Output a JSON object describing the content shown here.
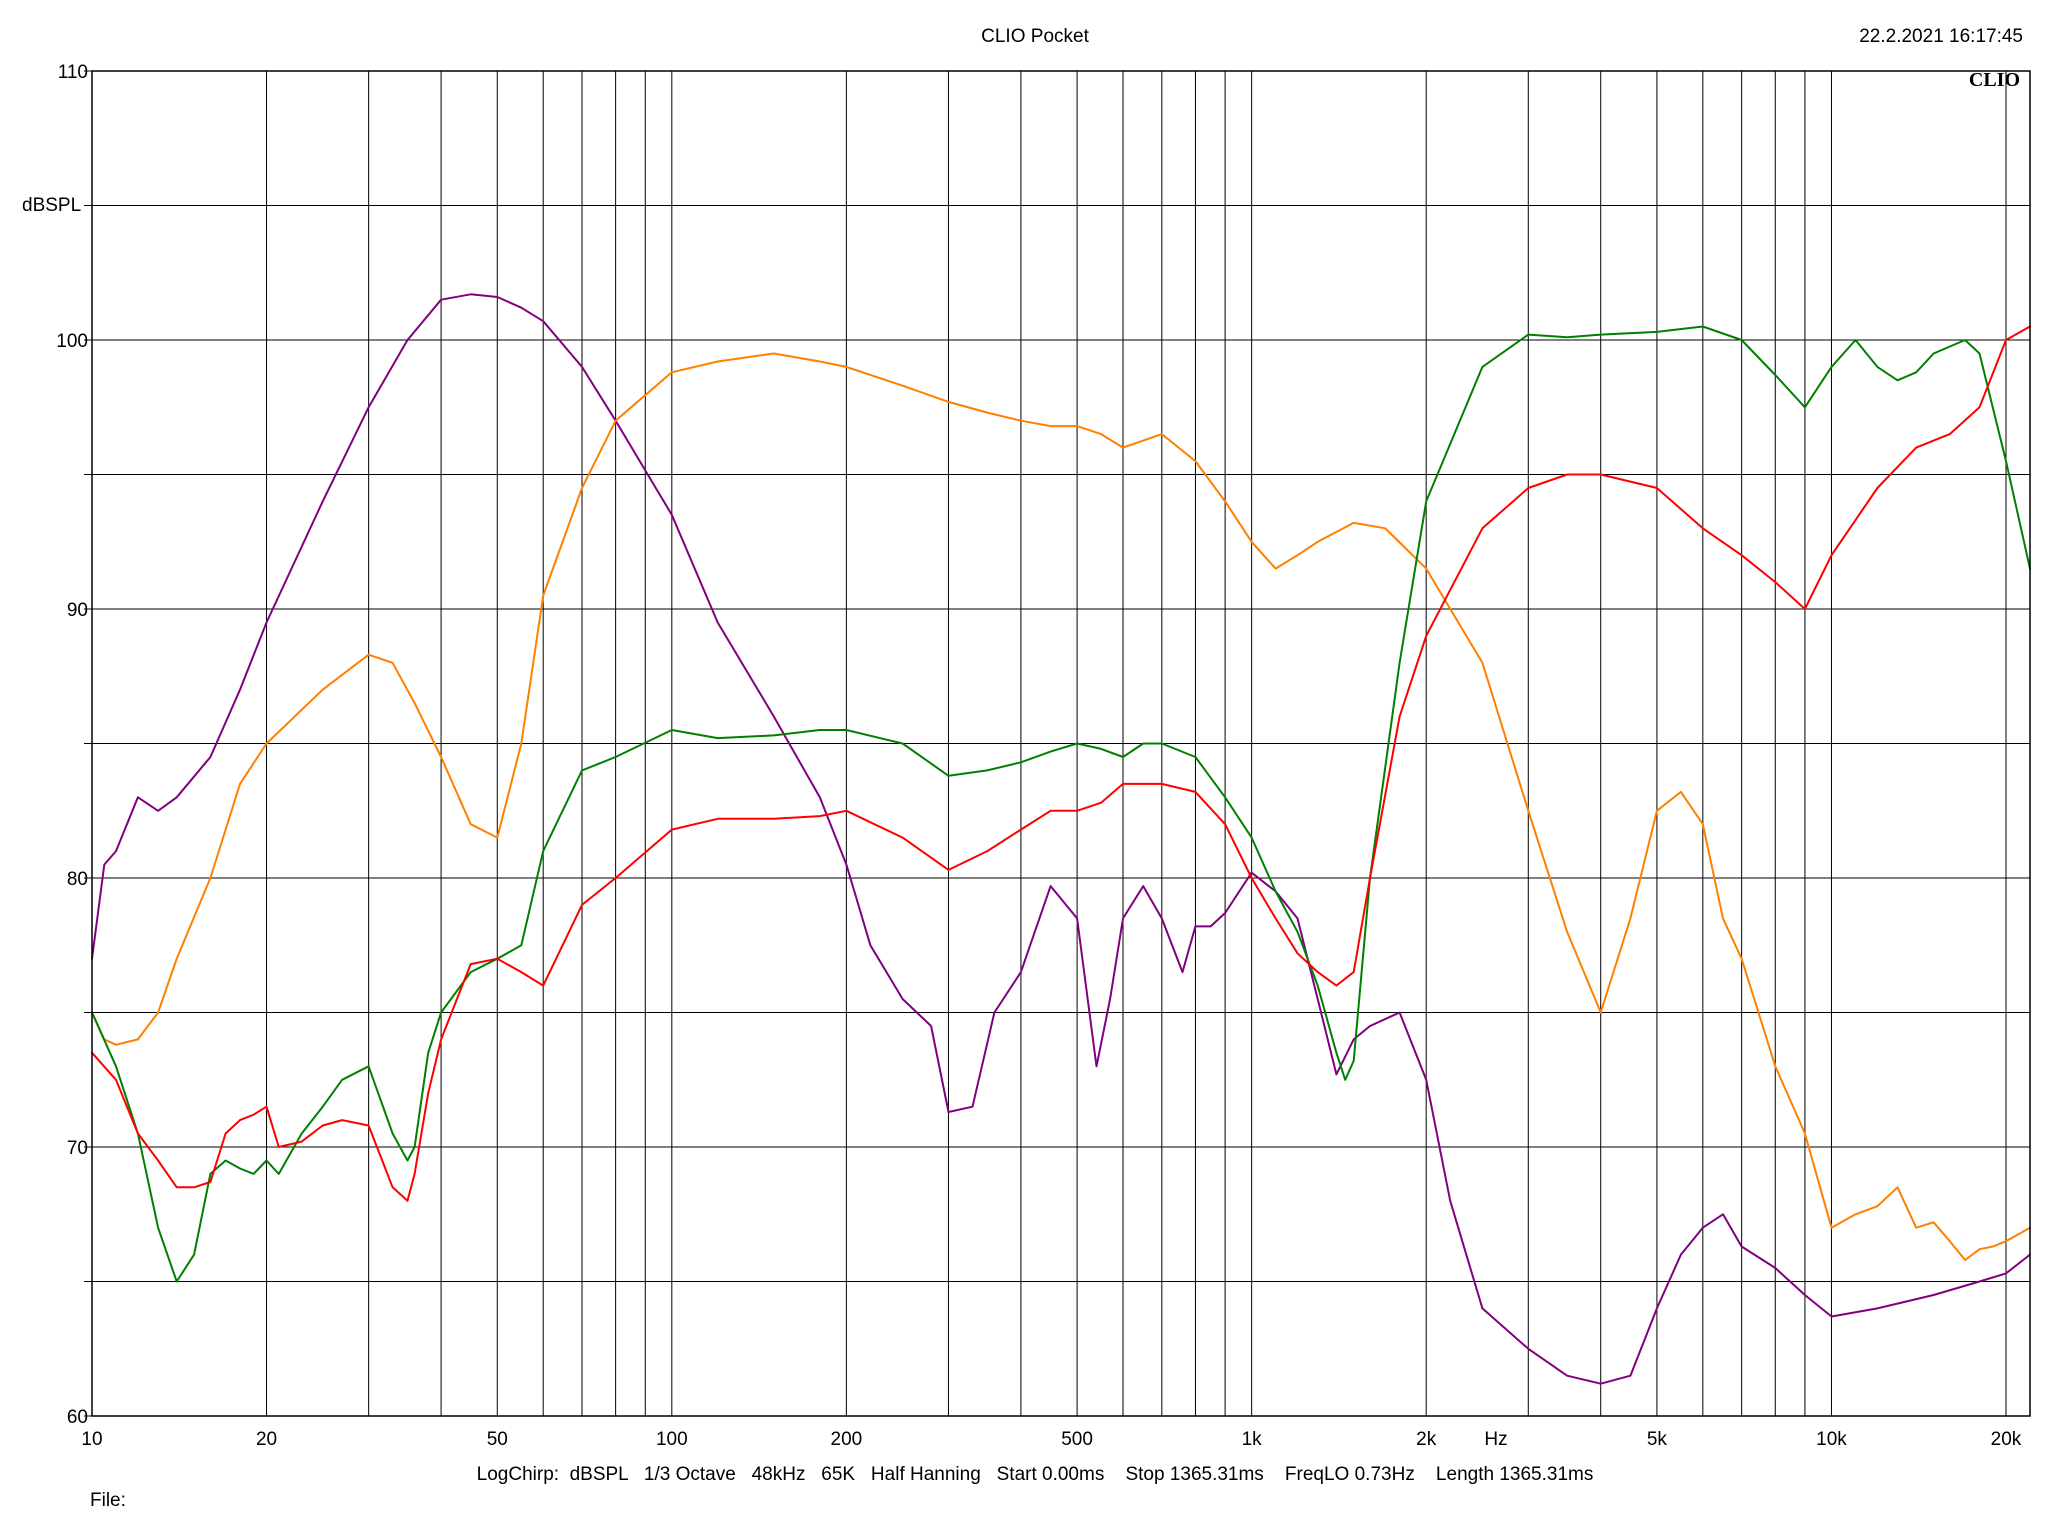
{
  "header": {
    "title": "CLIO Pocket",
    "timestamp": "22.2.2021 16:17:45",
    "brand": "CLIO"
  },
  "footer": {
    "settings_line": "LogChirp:  dBSPL   1/3 Octave   48kHz   65K   Half Hanning   Start 0.00ms    Stop 1365.31ms    FreqLO 0.73Hz    Length 1365.31ms",
    "file_label": "File:"
  },
  "chart_data": {
    "type": "line",
    "title": "CLIO Pocket",
    "xlabel": "Hz",
    "ylabel": "dBSPL",
    "x_scale": "log",
    "xlim": [
      10,
      22000
    ],
    "ylim": [
      60,
      110
    ],
    "y_ticks": [
      60,
      70,
      80,
      90,
      100,
      110
    ],
    "x_tick_labels": [
      {
        "value": 10,
        "label": "10"
      },
      {
        "value": 20,
        "label": "20"
      },
      {
        "value": 50,
        "label": "50"
      },
      {
        "value": 100,
        "label": "100"
      },
      {
        "value": 200,
        "label": "200"
      },
      {
        "value": 500,
        "label": "500"
      },
      {
        "value": 1000,
        "label": "1k"
      },
      {
        "value": 2000,
        "label": "2k"
      },
      {
        "value": 5000,
        "label": "5k"
      },
      {
        "value": 10000,
        "label": "10k"
      },
      {
        "value": 20000,
        "label": "20k"
      }
    ],
    "grid": true,
    "series": [
      {
        "color": "#800080",
        "x": [
          10,
          10.5,
          11,
          12,
          13,
          14,
          16,
          18,
          20,
          25,
          30,
          35,
          40,
          45,
          50,
          55,
          60,
          70,
          80,
          100,
          120,
          150,
          180,
          200,
          220,
          250,
          280,
          300,
          330,
          360,
          400,
          450,
          500,
          540,
          570,
          600,
          650,
          700,
          760,
          800,
          850,
          900,
          1000,
          1100,
          1200,
          1300,
          1400,
          1500,
          1600,
          1800,
          2000,
          2200,
          2500,
          3000,
          3500,
          4000,
          4500,
          5000,
          5500,
          6000,
          6500,
          7000,
          8000,
          9000,
          10000,
          12000,
          15000,
          18000,
          20000,
          22000
        ],
        "values": [
          77,
          80.5,
          81,
          83,
          82.5,
          83,
          84.5,
          87,
          89.5,
          94,
          97.5,
          100,
          101.5,
          101.7,
          101.6,
          101.2,
          100.7,
          99,
          97,
          93.5,
          89.5,
          86,
          83,
          80.5,
          77.5,
          75.5,
          74.5,
          71.3,
          71.5,
          75,
          76.5,
          79.7,
          78.5,
          73,
          75.5,
          78.5,
          79.7,
          78.5,
          76.5,
          78.2,
          78.2,
          78.7,
          80.2,
          79.5,
          78.5,
          75.5,
          72.7,
          74,
          74.5,
          75,
          72.5,
          68,
          64,
          62.5,
          61.5,
          61.2,
          61.5,
          64,
          66,
          67,
          67.5,
          66.3,
          65.5,
          64.5,
          63.7,
          64,
          64.5,
          65,
          65.3,
          66
        ]
      },
      {
        "color": "#ff8000",
        "x": [
          10,
          10.5,
          11,
          12,
          13,
          14,
          16,
          18,
          20,
          25,
          30,
          33,
          36,
          40,
          45,
          50,
          55,
          60,
          70,
          80,
          100,
          120,
          150,
          180,
          200,
          250,
          300,
          350,
          400,
          450,
          500,
          550,
          600,
          700,
          800,
          900,
          1000,
          1100,
          1200,
          1300,
          1500,
          1700,
          2000,
          2500,
          3000,
          3500,
          4000,
          4500,
          5000,
          5500,
          6000,
          6500,
          7000,
          8000,
          9000,
          10000,
          11000,
          12000,
          13000,
          14000,
          15000,
          16000,
          17000,
          18000,
          19000,
          20000,
          22000
        ],
        "values": [
          75,
          74,
          73.8,
          74,
          75,
          77,
          80,
          83.5,
          85,
          87,
          88.3,
          88,
          86.5,
          84.5,
          82,
          81.5,
          85,
          90.5,
          94.5,
          97,
          98.8,
          99.2,
          99.5,
          99.2,
          99,
          98.3,
          97.7,
          97.3,
          97,
          96.8,
          96.8,
          96.5,
          96,
          96.5,
          95.5,
          94,
          92.5,
          91.5,
          92,
          92.5,
          93.2,
          93,
          91.5,
          88,
          82.5,
          78,
          75,
          78.5,
          82.5,
          83.2,
          82,
          78.5,
          77,
          73,
          70.5,
          67,
          67.5,
          67.8,
          68.5,
          67,
          67.2,
          66.5,
          65.8,
          66.2,
          66.3,
          66.5,
          67
        ]
      },
      {
        "color": "#008000",
        "x": [
          10,
          11,
          12,
          13,
          14,
          15,
          16,
          17,
          18,
          19,
          20,
          21,
          23,
          25,
          27,
          30,
          33,
          35,
          36,
          38,
          40,
          45,
          50,
          55,
          60,
          70,
          80,
          100,
          120,
          150,
          180,
          200,
          250,
          300,
          350,
          400,
          450,
          500,
          550,
          600,
          650,
          700,
          800,
          900,
          1000,
          1100,
          1200,
          1300,
          1400,
          1450,
          1500,
          1600,
          1800,
          2000,
          2500,
          3000,
          3500,
          4000,
          5000,
          6000,
          7000,
          8000,
          9000,
          10000,
          11000,
          12000,
          13000,
          14000,
          15000,
          17000,
          18000,
          20000,
          22000
        ],
        "values": [
          75,
          73,
          70.5,
          67,
          65,
          66,
          69,
          69.5,
          69.2,
          69,
          69.5,
          69,
          70.5,
          71.5,
          72.5,
          73,
          70.5,
          69.5,
          70,
          73.5,
          75,
          76.5,
          77,
          77.5,
          81,
          84,
          84.5,
          85.5,
          85.2,
          85.3,
          85.5,
          85.5,
          85,
          83.8,
          84,
          84.3,
          84.7,
          85,
          84.8,
          84.5,
          85,
          85,
          84.5,
          83,
          81.5,
          79.5,
          78,
          76,
          73.5,
          72.5,
          73.2,
          80,
          88,
          94,
          99,
          100.2,
          100.1,
          100.2,
          100.3,
          100.5,
          100,
          98.7,
          97.5,
          99,
          100,
          99,
          98.5,
          98.8,
          99.5,
          100,
          99.5,
          95.5,
          91.5
        ]
      },
      {
        "color": "#ff0000",
        "x": [
          10,
          11,
          12,
          13,
          14,
          15,
          16,
          17,
          18,
          19,
          20,
          21,
          23,
          25,
          27,
          30,
          33,
          35,
          36,
          38,
          40,
          45,
          50,
          55,
          60,
          70,
          80,
          100,
          120,
          150,
          180,
          200,
          250,
          300,
          350,
          400,
          450,
          500,
          550,
          600,
          700,
          800,
          900,
          1000,
          1100,
          1200,
          1300,
          1400,
          1500,
          1600,
          1800,
          2000,
          2500,
          3000,
          3500,
          4000,
          5000,
          6000,
          7000,
          8000,
          9000,
          10000,
          12000,
          14000,
          16000,
          18000,
          20000,
          22000
        ],
        "values": [
          73.5,
          72.5,
          70.5,
          69.5,
          68.5,
          68.5,
          68.7,
          70.5,
          71,
          71.2,
          71.5,
          70,
          70.2,
          70.8,
          71,
          70.8,
          68.5,
          68,
          69,
          72,
          74,
          76.8,
          77,
          76.5,
          76,
          79,
          80,
          81.8,
          82.2,
          82.2,
          82.3,
          82.5,
          81.5,
          80.3,
          81,
          81.8,
          82.5,
          82.5,
          82.8,
          83.5,
          83.5,
          83.2,
          82,
          80,
          78.5,
          77.2,
          76.5,
          76,
          76.5,
          80,
          86,
          89,
          93,
          94.5,
          95,
          95,
          94.5,
          93,
          92,
          91,
          90,
          92,
          94.5,
          96,
          96.5,
          97.5,
          100,
          100.5
        ]
      }
    ]
  }
}
